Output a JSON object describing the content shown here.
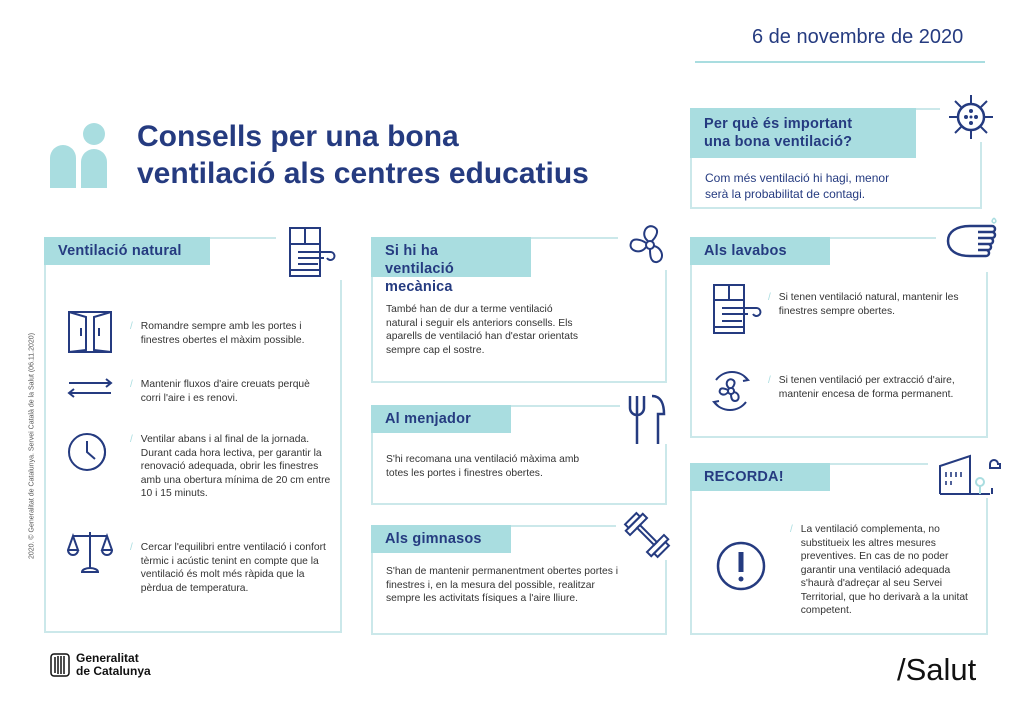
{
  "date": "6 de novembre de 2020",
  "title_line1": "Consells per una bona",
  "title_line2": "ventilació als centres educatius",
  "copyright": "2020. © Generalitat de Catalunya. Servei Català de la Salut (06.11.2020)",
  "why": {
    "heading_l1": "Per què és important",
    "heading_l2": "una bona ventilació?",
    "body_l1": "Com més ventilació hi hagi, menor",
    "body_l2": "serà la probabilitat de contagi."
  },
  "natural": {
    "heading": "Ventilació natural",
    "items": [
      "Romandre sempre amb les portes i finestres obertes el màxim possible.",
      "Mantenir fluxos d'aire creuats perquè corri l'aire i es renovi.",
      "Ventilar abans i al final de la jornada. Durant cada hora lectiva, per garantir la renovació adequada, obrir les finestres amb una obertura mínima de 20 cm entre 10 i 15 minuts.",
      "Cercar l'equilibri entre ventilació i confort tèrmic i acústic tenint en compte que la ventilació és molt més ràpida que la pèrdua de temperatura."
    ]
  },
  "mechanical": {
    "heading_l1": "Si hi ha",
    "heading_l2": "ventilació mecànica",
    "body": "També han de dur a terme ventilació natural i seguir els anteriors consells. Els aparells de ventilació han d'estar orientats sempre cap el sostre."
  },
  "dining": {
    "heading": "Al menjador",
    "body": "S'hi recomana una ventilació màxima amb totes les portes i finestres obertes."
  },
  "gym": {
    "heading": "Als gimnasos",
    "body": "S'han de mantenir permanentment obertes portes i finestres i, en la mesura del possible, realitzar sempre les activitats físiques a l'aire lliure."
  },
  "toilets": {
    "heading": "Als lavabos",
    "items": [
      "Si tenen ventilació natural, mantenir les finestres sempre obertes.",
      "Si tenen ventilació per extracció d'aire, mantenir encesa de forma permanent."
    ]
  },
  "remember": {
    "heading": "RECORDA!",
    "body": "La ventilació complementa, no substitueix les altres mesures preventives. En cas de no poder garantir una ventilació adequada s'haurà d'adreçar al seu Servei Territorial, que ho derivarà a la unitat competent."
  },
  "footer": {
    "logo_l1": "Generalitat",
    "logo_l2": "de Catalunya",
    "brand": "/Salut"
  },
  "colors": {
    "navy": "#253b80",
    "teal": "#a9dde0",
    "border": "#cbe8ea"
  }
}
